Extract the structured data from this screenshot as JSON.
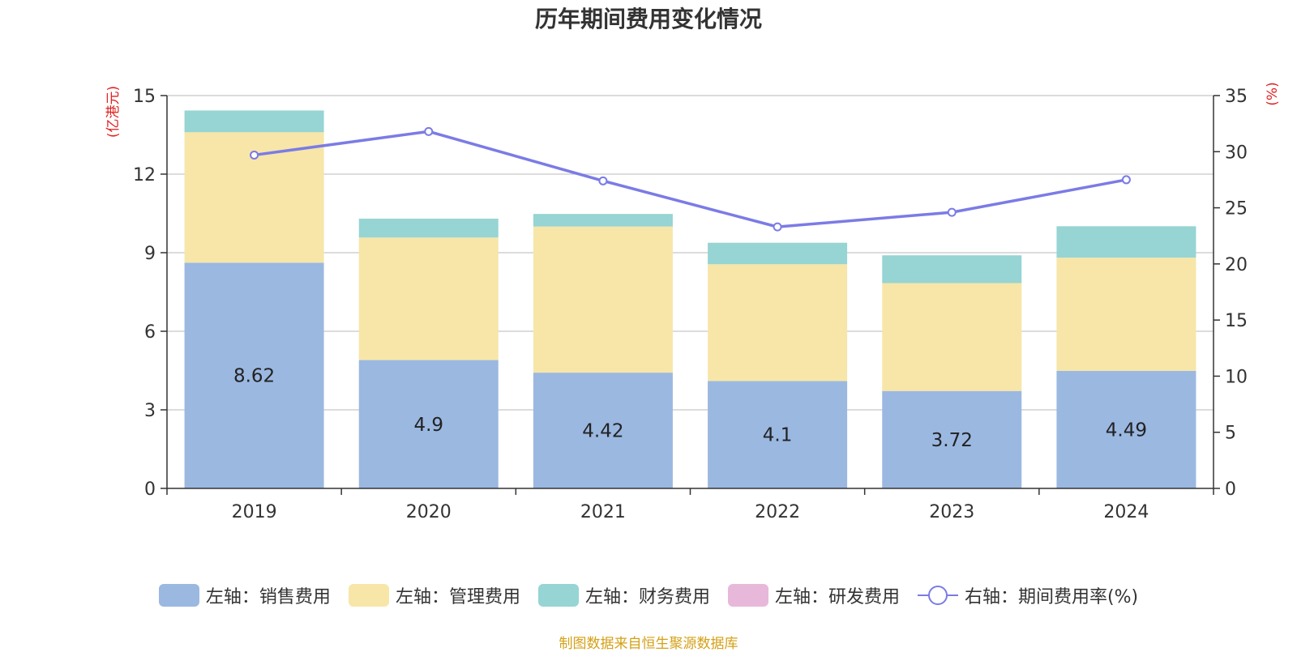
{
  "source_note": "制图数据来自恒生聚源数据库",
  "chart_data": {
    "type": "bar",
    "title": "历年期间费用变化情况",
    "categories": [
      "2019",
      "2020",
      "2021",
      "2022",
      "2023",
      "2024"
    ],
    "left_axis": {
      "label": "(亿港元)",
      "ylim": [
        0,
        15
      ],
      "ticks": [
        "0",
        "3",
        "6",
        "9",
        "12",
        "15"
      ]
    },
    "right_axis": {
      "label": "(%)",
      "ylim": [
        0,
        35
      ],
      "ticks": [
        "0",
        "5",
        "10",
        "15",
        "20",
        "25",
        "30",
        "35"
      ]
    },
    "grid": true,
    "legend_position": "bottom",
    "series": [
      {
        "name": "左轴：销售费用",
        "kind": "bar",
        "stack": "left",
        "color": "#9bb8e1",
        "values": [
          8.62,
          4.9,
          4.42,
          4.1,
          3.72,
          4.49
        ],
        "data_labels": [
          "8.62",
          "4.9",
          "4.42",
          "4.1",
          "3.72",
          "4.49"
        ]
      },
      {
        "name": "左轴：管理费用",
        "kind": "bar",
        "stack": "left",
        "color": "#f7e6a8",
        "values": [
          4.98,
          4.68,
          5.58,
          4.46,
          4.12,
          4.32
        ]
      },
      {
        "name": "左轴：财务费用",
        "kind": "bar",
        "stack": "left",
        "color": "#97d4d4",
        "values": [
          0.83,
          0.72,
          0.48,
          0.82,
          1.06,
          1.2
        ]
      },
      {
        "name": "左轴：研发费用",
        "kind": "bar",
        "stack": "left",
        "color": "#e8b8da",
        "values": [
          0,
          0,
          0,
          0,
          0,
          0
        ]
      },
      {
        "name": "右轴：期间费用率(%)",
        "kind": "line",
        "axis": "right",
        "color": "#7b7be6",
        "values": [
          29.7,
          31.8,
          27.4,
          23.3,
          24.6,
          27.5
        ]
      }
    ]
  }
}
